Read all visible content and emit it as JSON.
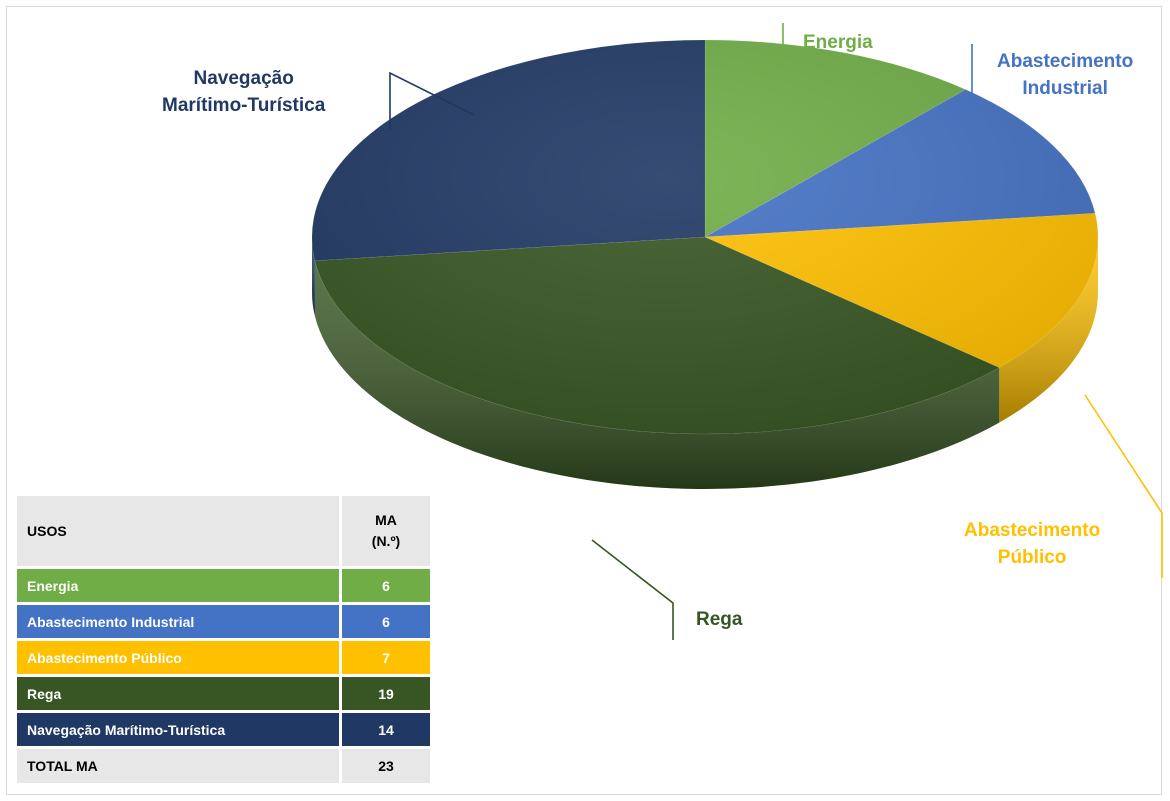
{
  "chart_data": {
    "type": "pie",
    "title": "",
    "slices": [
      {
        "label": "Energia",
        "value": 6,
        "color": "#70ad47"
      },
      {
        "label": "Abastecimento Industrial",
        "value": 6,
        "color": "#4472c4"
      },
      {
        "label": "Abastecimento Público",
        "value": 7,
        "color": "#ffc000"
      },
      {
        "label": "Rega",
        "value": 19,
        "color": "#375623"
      },
      {
        "label": "Navegação Marítimo-Turística",
        "value": 14,
        "color": "#203864"
      }
    ],
    "labels": {
      "energia": [
        "Energia"
      ],
      "abast_industrial": [
        "Abastecimento",
        "Industrial"
      ],
      "abast_publico": [
        "Abastecimento",
        "Público"
      ],
      "rega": [
        "Rega"
      ],
      "navegacao": [
        "Navegação",
        "Marítimo-Turística"
      ]
    },
    "style": "3d-pie",
    "legend": "table bottom-left"
  },
  "table": {
    "header": {
      "col1": "USOS",
      "col2_line1": "MA",
      "col2_line2": "(N.º)"
    },
    "rows": [
      {
        "name": "Energia",
        "value": "6",
        "color": "#70ad47"
      },
      {
        "name": "Abastecimento Industrial",
        "value": "6",
        "color": "#4472c4"
      },
      {
        "name": "Abastecimento Público",
        "value": "7",
        "color": "#ffc000"
      },
      {
        "name": "Rega",
        "value": "19",
        "color": "#375623"
      },
      {
        "name": "Navegação Marítimo-Turística",
        "value": "14",
        "color": "#203864"
      }
    ],
    "total": {
      "name": "TOTAL MA",
      "value": "23"
    }
  }
}
